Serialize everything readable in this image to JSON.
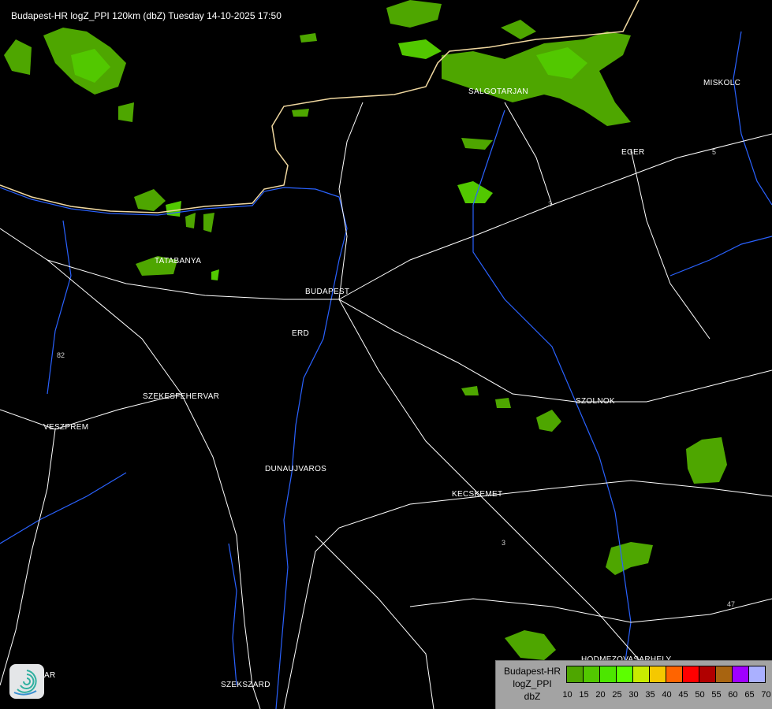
{
  "title": "Budapest-HR logZ_PPI 120km (dbZ) Tuesday 14-10-2025 17:50",
  "cities": [
    {
      "name": "SALGOTARJAN"
    },
    {
      "name": "EGER"
    },
    {
      "name": "MISKOLC"
    },
    {
      "name": "TATABANYA"
    },
    {
      "name": "BUDAPEST"
    },
    {
      "name": "ERD"
    },
    {
      "name": "SZEKESFEHERVAR"
    },
    {
      "name": "VESZPREM"
    },
    {
      "name": "SZOLNOK"
    },
    {
      "name": "DUNAUJVAROS"
    },
    {
      "name": "KECSKEMET"
    },
    {
      "name": "HODMEZOVASARHELY"
    },
    {
      "name": "SZEKSZARD"
    },
    {
      "name": "AR"
    }
  ],
  "road_numbers": [
    "3",
    "3",
    "5",
    "82",
    "47"
  ],
  "legend": {
    "line1": "Budapest-HR",
    "line2": "logZ_PPI",
    "line3": "dbZ",
    "ticks": [
      "10",
      "15",
      "20",
      "25",
      "30",
      "35",
      "40",
      "45",
      "50",
      "55",
      "60",
      "65",
      "70"
    ],
    "colors": [
      "#4ea600",
      "#52c800",
      "#4ce600",
      "#5cff00",
      "#c8ec00",
      "#f5c800",
      "#ff6400",
      "#ff0000",
      "#b00000",
      "#a86410",
      "#a000ff",
      "#aab0ff"
    ]
  },
  "logo_icon": "swirl-logo-icon"
}
